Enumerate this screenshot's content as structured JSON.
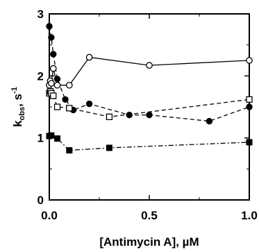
{
  "chart_data": {
    "type": "line",
    "xlabel": "[Antimycin A], µM",
    "ylabel_main": "k",
    "ylabel_sub": "obs",
    "ylabel_unit": ", s",
    "ylabel_sup": "-1",
    "xlim": [
      0,
      1.0
    ],
    "ylim": [
      0,
      3
    ],
    "xticks": [
      0.0,
      0.5,
      1.0
    ],
    "xtick_labels": [
      "0.0",
      "0.5",
      "1.0"
    ],
    "yticks": [
      0,
      1,
      2,
      3
    ],
    "ytick_labels": [
      "0",
      "1",
      "2",
      "3"
    ],
    "grid": false,
    "series": [
      {
        "marker": "open-circle",
        "line": "solid",
        "x": [
          0.0,
          0.005,
          0.01,
          0.02,
          0.04,
          0.1,
          0.2,
          0.5,
          1.0
        ],
        "y": [
          1.85,
          1.92,
          1.88,
          2.12,
          1.85,
          1.85,
          2.3,
          2.17,
          2.25
        ]
      },
      {
        "marker": "filled-circle",
        "line": "dashed",
        "x": [
          0.0,
          0.01,
          0.02,
          0.04,
          0.08,
          0.12,
          0.2,
          0.4,
          0.5,
          0.8,
          1.0
        ],
        "y": [
          2.8,
          2.62,
          2.35,
          1.95,
          1.62,
          1.45,
          1.55,
          1.37,
          1.37,
          1.27,
          1.5
        ]
      },
      {
        "marker": "open-square",
        "line": "dashed",
        "x": [
          0.0,
          0.005,
          0.01,
          0.02,
          0.04,
          0.1,
          0.3,
          1.0
        ],
        "y": [
          1.72,
          1.75,
          1.72,
          1.68,
          1.5,
          1.48,
          1.34,
          1.62
        ]
      },
      {
        "marker": "filled-square",
        "line": "dash-dot",
        "x": [
          0.0,
          0.01,
          0.04,
          0.1,
          0.3,
          1.0
        ],
        "y": [
          1.03,
          1.04,
          0.99,
          0.8,
          0.84,
          0.93
        ]
      }
    ]
  }
}
